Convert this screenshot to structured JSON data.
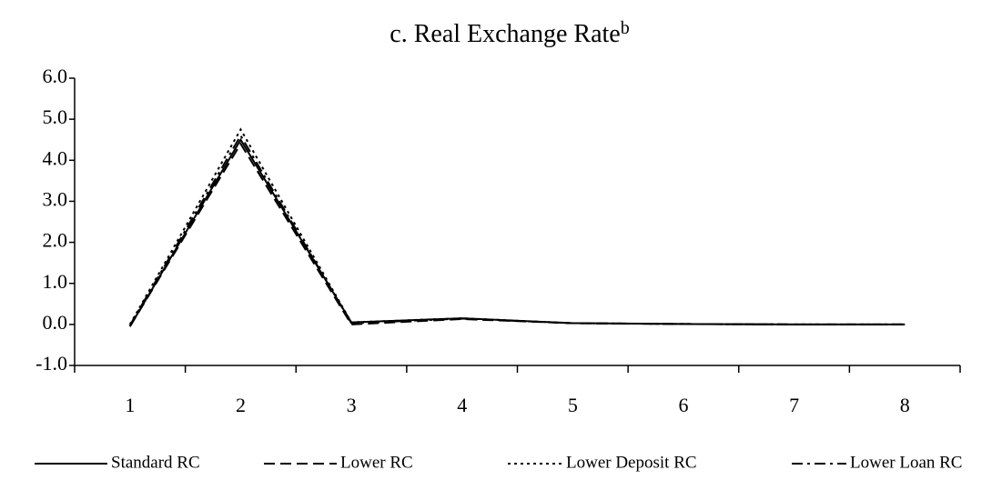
{
  "chart_data": {
    "type": "line",
    "title": "c. Real Exchange Rate",
    "title_superscript": "b",
    "categories": [
      "1",
      "2",
      "3",
      "4",
      "5",
      "6",
      "7",
      "8"
    ],
    "ylim": [
      -1,
      6
    ],
    "yticks": [
      {
        "value": -1,
        "label": "-1.0"
      },
      {
        "value": 0,
        "label": "0.0"
      },
      {
        "value": 1,
        "label": "1.0"
      },
      {
        "value": 2,
        "label": "2.0"
      },
      {
        "value": 3,
        "label": "3.0"
      },
      {
        "value": 4,
        "label": "4.0"
      },
      {
        "value": 5,
        "label": "5.0"
      },
      {
        "value": 6,
        "label": "6.0"
      }
    ],
    "grid": false,
    "legend": "bottom",
    "series": [
      {
        "name": "Standard RC",
        "color": "#000000",
        "dash": "solid",
        "values": [
          -0.05,
          4.5,
          0.05,
          0.15,
          0.03,
          0.01,
          0.0,
          0.0
        ]
      },
      {
        "name": "Lower RC",
        "color": "#000000",
        "dash": "dashed",
        "values": [
          -0.05,
          4.4,
          0.0,
          0.13,
          0.03,
          0.01,
          0.0,
          0.0
        ]
      },
      {
        "name": "Lower Deposit RC",
        "color": "#000000",
        "dash": "dotted",
        "values": [
          0.0,
          4.75,
          0.05,
          0.15,
          0.03,
          0.01,
          0.0,
          0.0
        ]
      },
      {
        "name": "Lower Loan RC",
        "color": "#000000",
        "dash": "dashdot",
        "values": [
          -0.02,
          4.6,
          0.03,
          0.14,
          0.03,
          0.01,
          0.0,
          0.0
        ]
      }
    ]
  }
}
